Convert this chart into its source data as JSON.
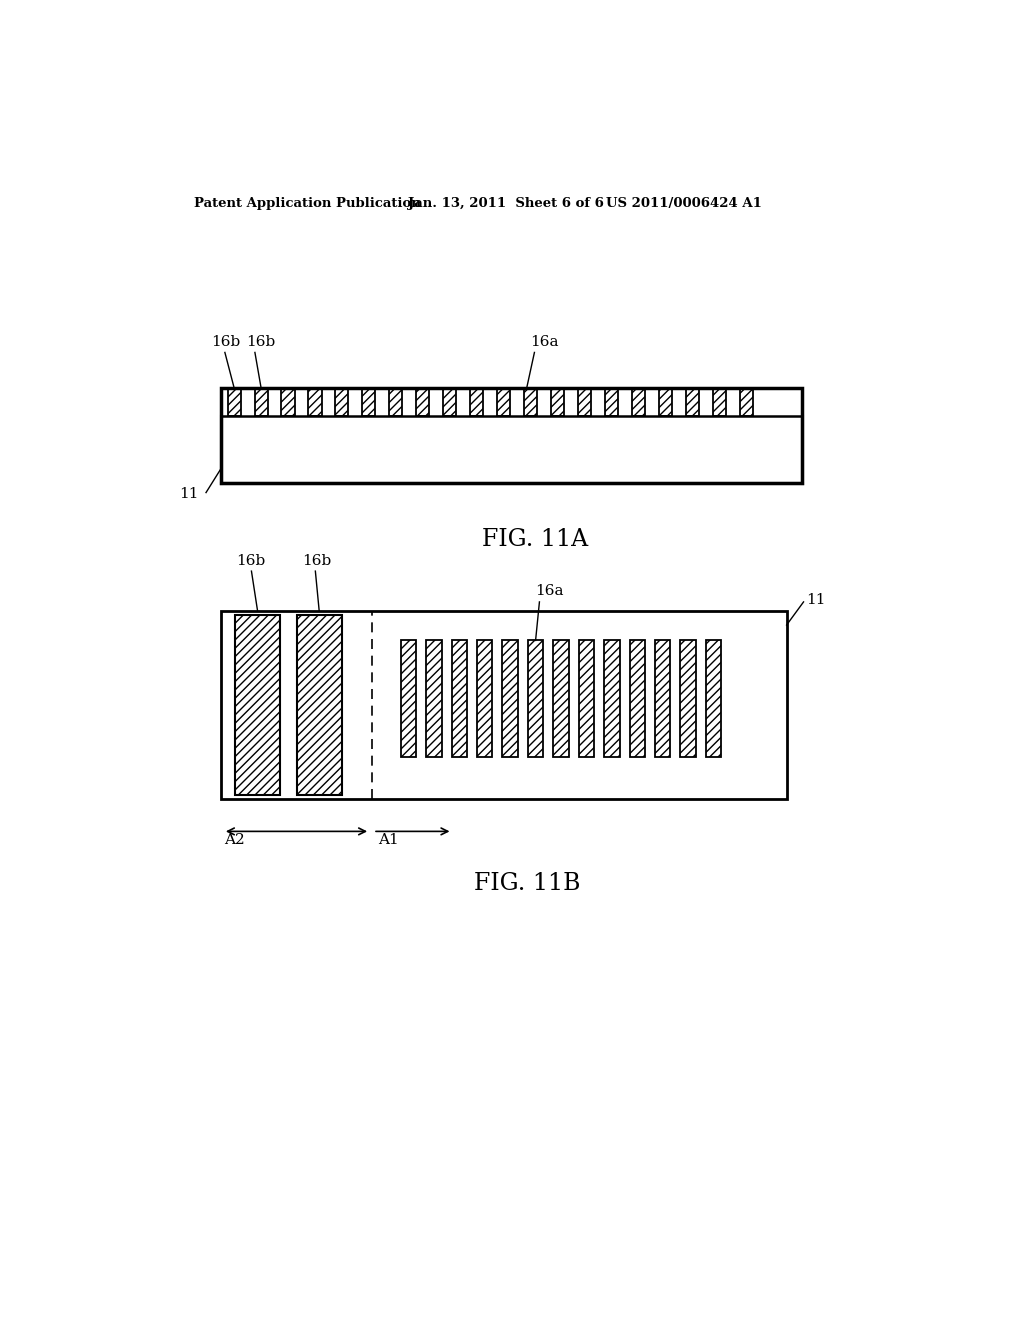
{
  "bg_color": "#ffffff",
  "header_left": "Patent Application Publication",
  "header_mid": "Jan. 13, 2011  Sheet 6 of 6",
  "header_right": "US 2011/0006424 A1",
  "fig11a_label": "FIG. 11A",
  "fig11b_label": "FIG. 11B",
  "label_16b_1": "16b",
  "label_16b_2": "16b",
  "label_16a_top": "16a",
  "label_11_top": "11",
  "label_11_bot": "11",
  "label_16a_bot": "16a",
  "label_16b_bot1": "16b",
  "label_16b_bot2": "16b",
  "label_A1": "A1",
  "label_A2": "A2",
  "line_color": "#000000"
}
